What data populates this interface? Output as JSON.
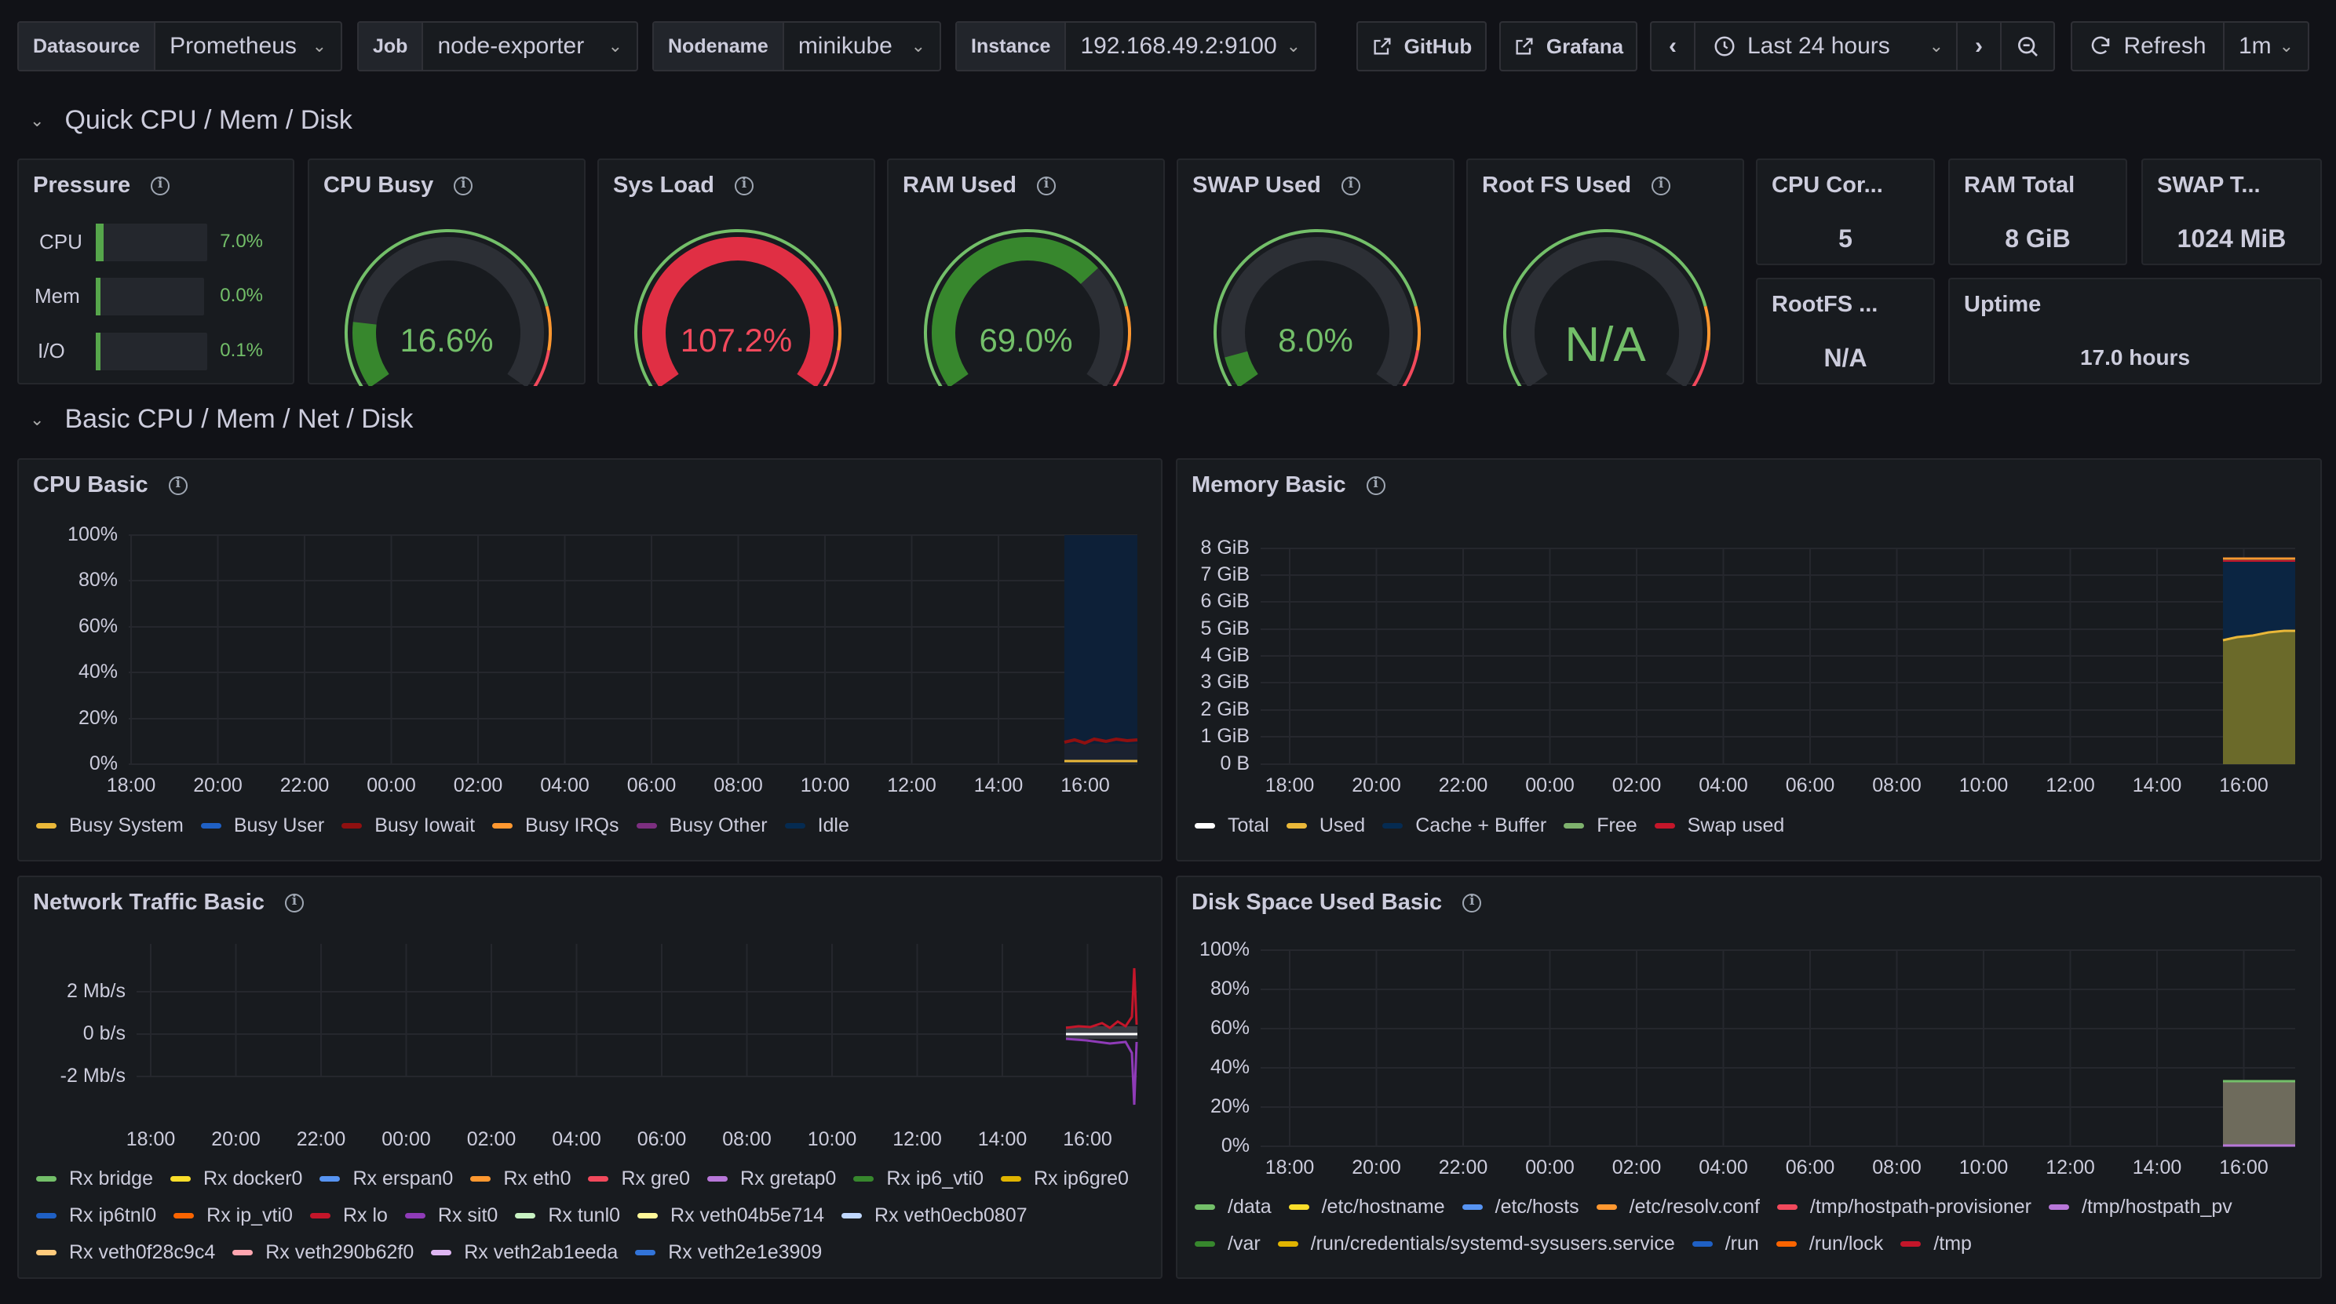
{
  "variables": [
    {
      "label": "Datasource",
      "value": "Prometheus"
    },
    {
      "label": "Job",
      "value": "node-exporter"
    },
    {
      "label": "Nodename",
      "value": "minikube"
    },
    {
      "label": "Instance",
      "value": "192.168.49.2:9100"
    }
  ],
  "toolbar": {
    "github": "GitHub",
    "grafana": "Grafana",
    "time_range": "Last 24 hours",
    "refresh": "Refresh",
    "refresh_interval": "1m"
  },
  "rows": {
    "quick": "Quick CPU / Mem / Disk",
    "basic": "Basic CPU / Mem / Net / Disk"
  },
  "pressure": {
    "title": "Pressure",
    "items": [
      {
        "label": "CPU",
        "value": "7.0%",
        "fraction": 0.07
      },
      {
        "label": "Mem",
        "value": "0.0%",
        "fraction": 0.0
      },
      {
        "label": "I/O",
        "value": "0.1%",
        "fraction": 0.001
      }
    ]
  },
  "gauges": [
    {
      "title": "CPU Busy",
      "value": "16.6%",
      "level": 0.166,
      "color": "#37872d",
      "text_color": "#73bf69"
    },
    {
      "title": "Sys Load",
      "value": "107.2%",
      "level": 1.0,
      "color": "#e02f44",
      "text_color": "#f2495c"
    },
    {
      "title": "RAM Used",
      "value": "69.0%",
      "level": 0.69,
      "color": "#37872d",
      "text_color": "#73bf69"
    },
    {
      "title": "SWAP Used",
      "value": "8.0%",
      "level": 0.08,
      "color": "#37872d",
      "text_color": "#73bf69"
    },
    {
      "title": "Root FS Used",
      "value": "N/A",
      "level": 0,
      "color": "#37872d",
      "text_color": "#73bf69"
    }
  ],
  "stats": {
    "cpu_cores": {
      "title": "CPU Cor...",
      "value": "5"
    },
    "ram_total": {
      "title": "RAM Total",
      "value": "8 GiB"
    },
    "swap_total": {
      "title": "SWAP T...",
      "value": "1024 MiB"
    },
    "rootfs": {
      "title": "RootFS ...",
      "value": "N/A"
    },
    "uptime": {
      "title": "Uptime",
      "value": "17.0 hours"
    }
  },
  "time_ticks": [
    "18:00",
    "20:00",
    "22:00",
    "00:00",
    "02:00",
    "04:00",
    "06:00",
    "08:00",
    "10:00",
    "12:00",
    "14:00",
    "16:00"
  ],
  "cpu_basic": {
    "title": "CPU Basic",
    "y_ticks": [
      "100%",
      "80%",
      "60%",
      "40%",
      "20%",
      "0%"
    ],
    "legend": [
      {
        "name": "Busy System",
        "color": "#eab839"
      },
      {
        "name": "Busy User",
        "color": "#1f60c4"
      },
      {
        "name": "Busy Iowait",
        "color": "#8f1010"
      },
      {
        "name": "Busy IRQs",
        "color": "#ff9830"
      },
      {
        "name": "Busy Other",
        "color": "#7c2f80"
      },
      {
        "name": "Idle",
        "color": "#052b51"
      }
    ]
  },
  "memory_basic": {
    "title": "Memory Basic",
    "y_ticks": [
      "8 GiB",
      "7 GiB",
      "6 GiB",
      "5 GiB",
      "4 GiB",
      "3 GiB",
      "2 GiB",
      "1 GiB",
      "0 B"
    ],
    "legend": [
      {
        "name": "Total",
        "color": "#ffffff"
      },
      {
        "name": "Used",
        "color": "#eab839"
      },
      {
        "name": "Cache + Buffer",
        "color": "#052b51"
      },
      {
        "name": "Free",
        "color": "#7eb26d"
      },
      {
        "name": "Swap used",
        "color": "#c4162a"
      }
    ]
  },
  "network_basic": {
    "title": "Network Traffic Basic",
    "y_ticks": [
      "2 Mb/s",
      "0 b/s",
      "-2 Mb/s"
    ],
    "legend": [
      {
        "name": "Rx bridge",
        "color": "#73bf69"
      },
      {
        "name": "Rx docker0",
        "color": "#fade2a"
      },
      {
        "name": "Rx erspan0",
        "color": "#5794f2"
      },
      {
        "name": "Rx eth0",
        "color": "#ff9830"
      },
      {
        "name": "Rx gre0",
        "color": "#f2495c"
      },
      {
        "name": "Rx gretap0",
        "color": "#b877d9"
      },
      {
        "name": "Rx ip6_vti0",
        "color": "#37872d"
      },
      {
        "name": "Rx ip6gre0",
        "color": "#e0b400"
      },
      {
        "name": "Rx ip6tnl0",
        "color": "#1f60c4"
      },
      {
        "name": "Rx ip_vti0",
        "color": "#fa6400"
      },
      {
        "name": "Rx lo",
        "color": "#c4162a"
      },
      {
        "name": "Rx sit0",
        "color": "#8f3bb8"
      },
      {
        "name": "Rx tunl0",
        "color": "#c8f2c2"
      },
      {
        "name": "Rx veth04b5e714",
        "color": "#fff899"
      },
      {
        "name": "Rx veth0ecb0807",
        "color": "#c0d8ff"
      },
      {
        "name": "Rx veth0f28c9c4",
        "color": "#ffcb7d"
      },
      {
        "name": "Rx veth290b62f0",
        "color": "#ffa6b0"
      },
      {
        "name": "Rx veth2ab1eeda",
        "color": "#deb6f2"
      },
      {
        "name": "Rx veth2e1e3909",
        "color": "#3274d9"
      }
    ]
  },
  "disk_basic": {
    "title": "Disk Space Used Basic",
    "y_ticks": [
      "100%",
      "80%",
      "60%",
      "40%",
      "20%",
      "0%"
    ],
    "legend": [
      {
        "name": "/data",
        "color": "#73bf69"
      },
      {
        "name": "/etc/hostname",
        "color": "#fade2a"
      },
      {
        "name": "/etc/hosts",
        "color": "#5794f2"
      },
      {
        "name": "/etc/resolv.conf",
        "color": "#ff9830"
      },
      {
        "name": "/tmp/hostpath-provisioner",
        "color": "#f2495c"
      },
      {
        "name": "/tmp/hostpath_pv",
        "color": "#b877d9"
      },
      {
        "name": "/var",
        "color": "#37872d"
      },
      {
        "name": "/run/credentials/systemd-sysusers.service",
        "color": "#e0b400"
      },
      {
        "name": "/run",
        "color": "#1f60c4"
      },
      {
        "name": "/run/lock",
        "color": "#fa6400"
      },
      {
        "name": "/tmp",
        "color": "#c4162a"
      }
    ]
  }
}
